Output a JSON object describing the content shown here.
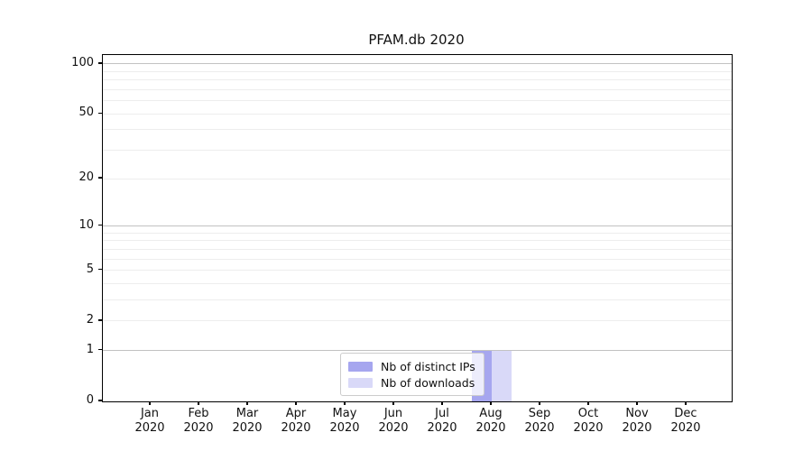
{
  "title": "PFAM.db 2020",
  "legend": {
    "items": [
      {
        "label": "Nb of distinct IPs",
        "color": "#a6a6ef"
      },
      {
        "label": "Nb of downloads",
        "color": "#d9d9f8"
      }
    ]
  },
  "chart_data": {
    "type": "bar",
    "title": "PFAM.db 2020",
    "categories": [
      "Jan 2020",
      "Feb 2020",
      "Mar 2020",
      "Apr 2020",
      "May 2020",
      "Jun 2020",
      "Jul 2020",
      "Aug 2020",
      "Sep 2020",
      "Oct 2020",
      "Nov 2020",
      "Dec 2020"
    ],
    "series": [
      {
        "name": "Nb of distinct IPs",
        "color": "#a6a6ef",
        "values": [
          0,
          0,
          0,
          0,
          0,
          0,
          0,
          1,
          0,
          0,
          0,
          0
        ]
      },
      {
        "name": "Nb of downloads",
        "color": "#d9d9f8",
        "values": [
          0,
          0,
          0,
          0,
          0,
          0,
          0,
          1,
          0,
          0,
          0,
          0
        ]
      }
    ],
    "xlabel": "",
    "ylabel": "",
    "yscale": "log1p",
    "ylim": [
      0,
      113
    ],
    "y_major_ticks": [
      100,
      50,
      20,
      10,
      5,
      2,
      1,
      0
    ],
    "y_decade_gridlines": [
      1,
      10,
      100
    ],
    "y_minor_gridlines": [
      2,
      3,
      4,
      5,
      6,
      7,
      8,
      9,
      20,
      30,
      40,
      50,
      60,
      70,
      80,
      90
    ],
    "grid": "horizontal",
    "legend_position": "lower-center"
  },
  "colors": {
    "background": "#ffffff",
    "spine": "#000000",
    "decade_grid": "#c2c2c2",
    "minor_grid": "#ededed",
    "text": "#111111",
    "legend_border": "#cccccc"
  }
}
